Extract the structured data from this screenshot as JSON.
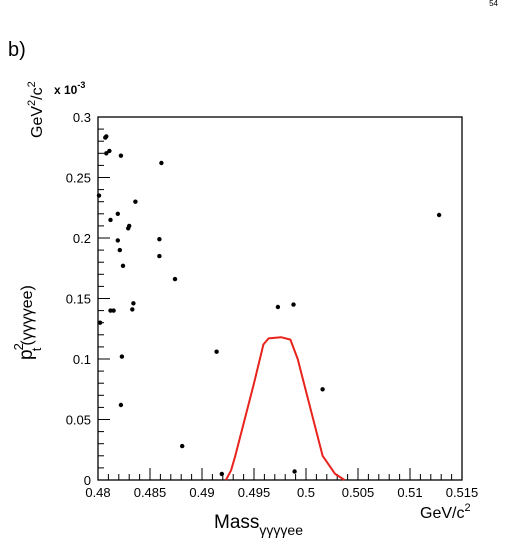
{
  "page_number": "54",
  "panel_label": "b)",
  "chart_data": {
    "type": "scatter",
    "xlabel_main": "Mass",
    "xlabel_sub": "γγγγee",
    "xunit_main": "GeV/c",
    "xunit_sup": "2",
    "ylabel_main": "p",
    "ylabel_sup": "2",
    "ylabel_sub": "t",
    "ylabel_tail": "(γγγγee)",
    "yunit_main": "GeV",
    "yunit_sup1": "2",
    "yunit_mid": "/c",
    "yunit_sup2": "2",
    "yscale_base": "x 10",
    "yscale_exp": "-3",
    "xlim": [
      0.48,
      0.515
    ],
    "ylim": [
      0,
      0.3
    ],
    "x_ticks": [
      "0.48",
      "0.485",
      "0.49",
      "0.495",
      "0.5",
      "0.505",
      "0.51",
      "0.515"
    ],
    "y_ticks": [
      "0",
      "0.05",
      "0.1",
      "0.15",
      "0.2",
      "0.25",
      "0.3"
    ],
    "points": [
      [
        0.4801,
        0.235
      ],
      [
        0.4802,
        0.13
      ],
      [
        0.4807,
        0.283
      ],
      [
        0.4808,
        0.284
      ],
      [
        0.4808,
        0.27
      ],
      [
        0.4811,
        0.272
      ],
      [
        0.4812,
        0.215
      ],
      [
        0.4812,
        0.14
      ],
      [
        0.4815,
        0.14
      ],
      [
        0.4819,
        0.22
      ],
      [
        0.4819,
        0.198
      ],
      [
        0.4821,
        0.19
      ],
      [
        0.4822,
        0.268
      ],
      [
        0.4822,
        0.062
      ],
      [
        0.4823,
        0.102
      ],
      [
        0.4824,
        0.177
      ],
      [
        0.4829,
        0.208
      ],
      [
        0.483,
        0.21
      ],
      [
        0.4833,
        0.141
      ],
      [
        0.4834,
        0.146
      ],
      [
        0.4836,
        0.23
      ],
      [
        0.4859,
        0.199
      ],
      [
        0.4859,
        0.185
      ],
      [
        0.4861,
        0.262
      ],
      [
        0.4874,
        0.166
      ],
      [
        0.4881,
        0.028
      ],
      [
        0.4914,
        0.106
      ],
      [
        0.4919,
        0.005
      ],
      [
        0.4973,
        0.143
      ],
      [
        0.4988,
        0.145
      ],
      [
        0.4989,
        0.007
      ],
      [
        0.5016,
        0.075
      ],
      [
        0.5128,
        0.219
      ]
    ],
    "curve": {
      "color": "#e8231c",
      "points": [
        [
          0.4923,
          0
        ],
        [
          0.4928,
          0.008
        ],
        [
          0.4932,
          0.02
        ],
        [
          0.495,
          0.08
        ],
        [
          0.4959,
          0.112
        ],
        [
          0.4964,
          0.117
        ],
        [
          0.4976,
          0.118
        ],
        [
          0.4985,
          0.116
        ],
        [
          0.4992,
          0.1
        ],
        [
          0.5016,
          0.02
        ],
        [
          0.5028,
          0.005
        ],
        [
          0.5037,
          0
        ]
      ]
    }
  }
}
